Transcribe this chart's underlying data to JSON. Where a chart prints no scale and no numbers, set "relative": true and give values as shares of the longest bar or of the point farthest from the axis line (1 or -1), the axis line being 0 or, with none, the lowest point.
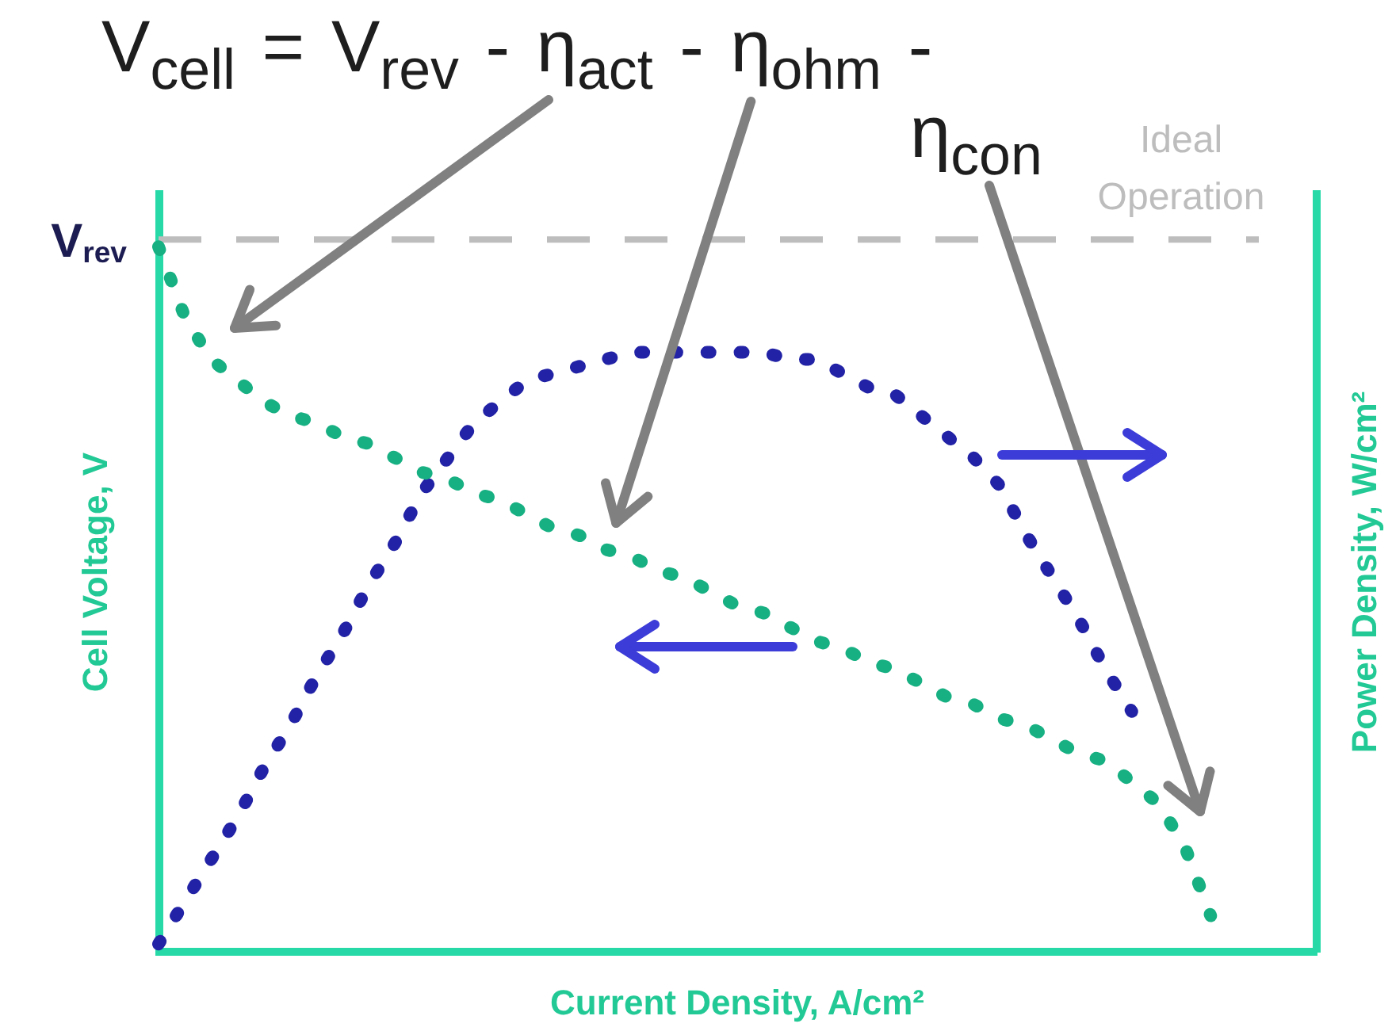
{
  "chart_data": {
    "type": "line",
    "title": "V$_{cell}$ = V$_{rev}$ - η$_{act}$ - η$_{ohm}$ - η$_{con}$",
    "xlabel": "Current Density, A/cm²",
    "ylabel": "Cell Voltage, V",
    "y2label": "Power Density, W/cm²",
    "relative": true,
    "line_style": "dotted",
    "marker": "none",
    "categories": [
      null,
      null,
      null,
      null,
      null,
      null,
      null,
      null,
      null,
      null,
      null,
      null,
      null,
      null,
      null,
      null,
      null,
      null,
      null,
      null,
      null,
      null,
      null,
      null,
      null,
      null,
      null,
      null,
      null,
      null,
      null,
      null,
      null,
      null,
      null,
      null,
      null,
      null,
      null,
      null,
      null,
      null,
      null,
      null,
      null
    ],
    "series": [
      {
        "color": "#17b082",
        "values": [
          1.0,
          0.9,
          0.84,
          0.81,
          0.78,
          0.76,
          0.75,
          0.73,
          0.72,
          0.7,
          0.68,
          0.67,
          0.65,
          0.64,
          0.62,
          0.6,
          0.59,
          0.57,
          0.56,
          0.54,
          0.53,
          0.51,
          0.49,
          0.48,
          0.46,
          0.44,
          0.43,
          0.41,
          0.4,
          0.38,
          0.36,
          0.35,
          0.33,
          0.32,
          0.3,
          0.28,
          0.27,
          0.24,
          0.21,
          0.15,
          0.05,
          null,
          null,
          null,
          null
        ]
      },
      {
        "color": "#2222a6",
        "values": [
          0.01,
          0.07,
          0.13,
          0.19,
          0.26,
          0.32,
          0.39,
          0.45,
          0.52,
          0.58,
          0.65,
          0.7,
          0.75,
          0.78,
          0.81,
          0.82,
          0.83,
          0.84,
          0.85,
          0.85,
          0.85,
          0.85,
          0.85,
          0.85,
          0.84,
          0.84,
          0.82,
          0.8,
          0.79,
          0.76,
          0.73,
          0.7,
          0.66,
          0.59,
          0.53,
          0.47,
          0.4,
          0.34,
          null,
          null,
          null,
          null,
          null,
          null,
          null
        ]
      }
    ],
    "ref_lines": [
      {
        "axis": "y",
        "value": 1.01,
        "label": "Ideal Operation",
        "color": "#bdbdbd",
        "line_style": "dashed"
      }
    ],
    "annotations": [
      "V$_{rev}$"
    ]
  }
}
